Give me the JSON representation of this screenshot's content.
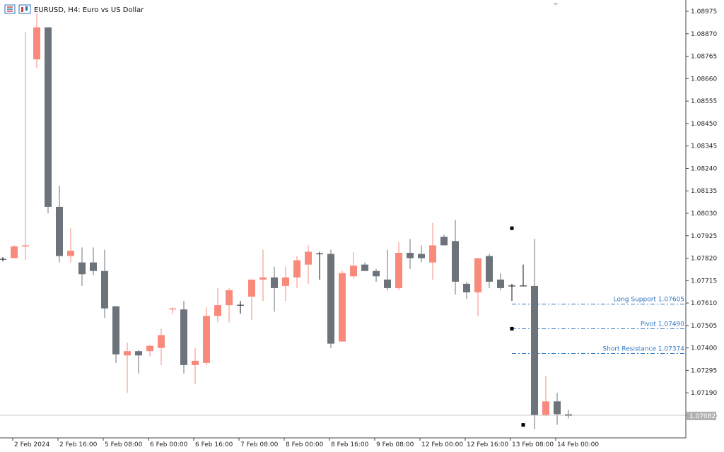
{
  "header": {
    "symbol_title": "EURUSD, H4:  Euro vs US Dollar",
    "icons": [
      "bar-chart-icon",
      "candle-chart-icon"
    ]
  },
  "chart_data": {
    "type": "candlestick",
    "title": "EURUSD, H4:  Euro vs US Dollar",
    "y_ticks": [
      "1.08975",
      "1.08870",
      "1.08765",
      "1.08660",
      "1.08555",
      "1.08450",
      "1.08345",
      "1.08240",
      "1.08135",
      "1.08030",
      "1.07925",
      "1.07820",
      "1.07715",
      "1.07610",
      "1.07505",
      "1.07400",
      "1.07295",
      "1.07190",
      "1.07085"
    ],
    "ylim": [
      1.07,
      1.0902
    ],
    "x_ticks": [
      {
        "index": 1,
        "label": "2 Feb 2024"
      },
      {
        "index": 5,
        "label": "2 Feb 16:00"
      },
      {
        "index": 9,
        "label": "5 Feb 08:00"
      },
      {
        "index": 13,
        "label": "6 Feb 00:00"
      },
      {
        "index": 17,
        "label": "6 Feb 16:00"
      },
      {
        "index": 21,
        "label": "7 Feb 08:00"
      },
      {
        "index": 25,
        "label": "8 Feb 00:00"
      },
      {
        "index": 29,
        "label": "8 Feb 16:00"
      },
      {
        "index": 33,
        "label": "9 Feb 08:00"
      },
      {
        "index": 37,
        "label": "12 Feb 00:00"
      },
      {
        "index": 41,
        "label": "12 Feb 16:00"
      },
      {
        "index": 45,
        "label": "13 Feb 08:00"
      },
      {
        "index": 49,
        "label": "14 Feb 00:00"
      }
    ],
    "candles": [
      {
        "o": 1.07815,
        "h": 1.07825,
        "l": 1.07805,
        "c": 1.07815
      },
      {
        "o": 1.0782,
        "h": 1.0788,
        "l": 1.0782,
        "c": 1.07875
      },
      {
        "o": 1.07875,
        "h": 1.0888,
        "l": 1.0781,
        "c": 1.0788
      },
      {
        "o": 1.0875,
        "h": 1.08965,
        "l": 1.0871,
        "c": 1.089
      },
      {
        "o": 1.089,
        "h": 1.089,
        "l": 1.0803,
        "c": 1.0806
      },
      {
        "o": 1.0806,
        "h": 1.0816,
        "l": 1.078,
        "c": 1.0783
      },
      {
        "o": 1.0783,
        "h": 1.0796,
        "l": 1.078,
        "c": 1.07855
      },
      {
        "o": 1.078,
        "h": 1.0787,
        "l": 1.0769,
        "c": 1.07745
      },
      {
        "o": 1.078,
        "h": 1.0787,
        "l": 1.0774,
        "c": 1.0776
      },
      {
        "o": 1.0776,
        "h": 1.0786,
        "l": 1.0754,
        "c": 1.07585
      },
      {
        "o": 1.07595,
        "h": 1.07595,
        "l": 1.0733,
        "c": 1.0737
      },
      {
        "o": 1.07365,
        "h": 1.07425,
        "l": 1.0719,
        "c": 1.07385
      },
      {
        "o": 1.07385,
        "h": 1.0739,
        "l": 1.0728,
        "c": 1.07365
      },
      {
        "o": 1.07385,
        "h": 1.07415,
        "l": 1.0736,
        "c": 1.0741
      },
      {
        "o": 1.074,
        "h": 1.0749,
        "l": 1.0732,
        "c": 1.0746
      },
      {
        "o": 1.0758,
        "h": 1.0759,
        "l": 1.0756,
        "c": 1.07585
      },
      {
        "o": 1.0758,
        "h": 1.0762,
        "l": 1.0728,
        "c": 1.0732
      },
      {
        "o": 1.0732,
        "h": 1.074,
        "l": 1.0723,
        "c": 1.0734
      },
      {
        "o": 1.0733,
        "h": 1.0759,
        "l": 1.0732,
        "c": 1.0755
      },
      {
        "o": 1.0755,
        "h": 1.0768,
        "l": 1.0752,
        "c": 1.076
      },
      {
        "o": 1.076,
        "h": 1.0768,
        "l": 1.0752,
        "c": 1.0767
      },
      {
        "o": 1.076,
        "h": 1.0762,
        "l": 1.0756,
        "c": 1.076
      },
      {
        "o": 1.0764,
        "h": 1.07705,
        "l": 1.0753,
        "c": 1.0772
      },
      {
        "o": 1.0772,
        "h": 1.0786,
        "l": 1.0762,
        "c": 1.0773
      },
      {
        "o": 1.0773,
        "h": 1.0778,
        "l": 1.0757,
        "c": 1.0768
      },
      {
        "o": 1.0769,
        "h": 1.0778,
        "l": 1.0762,
        "c": 1.0773
      },
      {
        "o": 1.0773,
        "h": 1.0783,
        "l": 1.0768,
        "c": 1.0781
      },
      {
        "o": 1.0779,
        "h": 1.0788,
        "l": 1.077,
        "c": 1.0785
      },
      {
        "o": 1.0784,
        "h": 1.0785,
        "l": 1.0772,
        "c": 1.0784
      },
      {
        "o": 1.0784,
        "h": 1.0786,
        "l": 1.074,
        "c": 1.0742
      },
      {
        "o": 1.0743,
        "h": 1.0776,
        "l": 1.0743,
        "c": 1.0775
      },
      {
        "o": 1.07735,
        "h": 1.0785,
        "l": 1.07725,
        "c": 1.07785
      },
      {
        "o": 1.0779,
        "h": 1.078,
        "l": 1.0776,
        "c": 1.0776
      },
      {
        "o": 1.0776,
        "h": 1.0777,
        "l": 1.0771,
        "c": 1.07735
      },
      {
        "o": 1.0772,
        "h": 1.0786,
        "l": 1.0767,
        "c": 1.0768
      },
      {
        "o": 1.0768,
        "h": 1.07895,
        "l": 1.0767,
        "c": 1.07845
      },
      {
        "o": 1.07845,
        "h": 1.0791,
        "l": 1.0777,
        "c": 1.0782
      },
      {
        "o": 1.0784,
        "h": 1.0788,
        "l": 1.078,
        "c": 1.0782
      },
      {
        "o": 1.078,
        "h": 1.07985,
        "l": 1.0772,
        "c": 1.0788
      },
      {
        "o": 1.0792,
        "h": 1.0793,
        "l": 1.0788,
        "c": 1.0788
      },
      {
        "o": 1.079,
        "h": 1.08,
        "l": 1.0765,
        "c": 1.0771
      },
      {
        "o": 1.077,
        "h": 1.0771,
        "l": 1.0763,
        "c": 1.0766
      },
      {
        "o": 1.0766,
        "h": 1.0782,
        "l": 1.0755,
        "c": 1.0782
      },
      {
        "o": 1.0783,
        "h": 1.0784,
        "l": 1.0768,
        "c": 1.0771
      },
      {
        "o": 1.0772,
        "h": 1.0775,
        "l": 1.0767,
        "c": 1.0768
      },
      {
        "o": 1.0769,
        "h": 1.077,
        "l": 1.0762,
        "c": 1.0769
      },
      {
        "o": 1.0769,
        "h": 1.0779,
        "l": 1.0769,
        "c": 1.0769
      },
      {
        "o": 1.0769,
        "h": 1.0791,
        "l": 1.0702,
        "c": 1.07085
      },
      {
        "o": 1.07085,
        "h": 1.0727,
        "l": 1.0708,
        "c": 1.0715
      },
      {
        "o": 1.0715,
        "h": 1.0719,
        "l": 1.0704,
        "c": 1.0709
      },
      {
        "o": 1.0709,
        "h": 1.0711,
        "l": 1.0707,
        "c": 1.07082
      }
    ],
    "fractals": [
      {
        "index": 45,
        "price": 1.0796
      },
      {
        "index": 45,
        "price": 1.0749
      },
      {
        "index": 46,
        "price": 1.0704
      }
    ],
    "levels": [
      {
        "name": "Long Support",
        "value": "1.07605",
        "price": 1.07605
      },
      {
        "name": "Pivot",
        "value": "1.07490",
        "price": 1.0749
      },
      {
        "name": "Short Resistance",
        "value": "1.07374",
        "price": 1.07374
      }
    ],
    "current_price": {
      "label": "1.07082",
      "price": 1.07082
    },
    "colors": {
      "bull": "#f98a7b",
      "bear": "#6c737a",
      "doji": "#111111",
      "level": "#2e78c2",
      "grid": "#c8c8c8",
      "price_tag": "#b0b0b0"
    },
    "grid": false
  }
}
